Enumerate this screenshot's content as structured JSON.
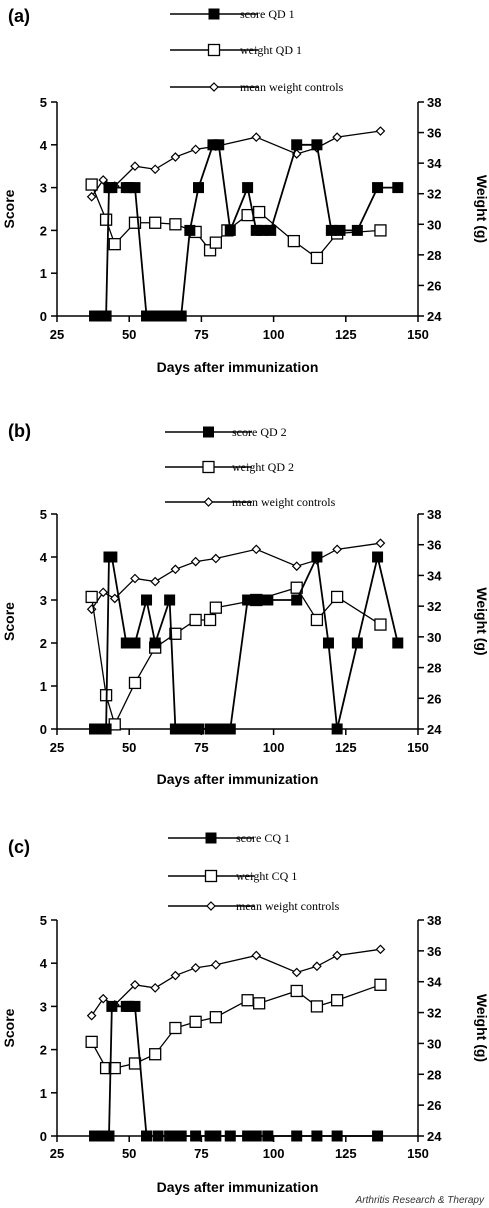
{
  "credit": "Arthritis Research & Therapy",
  "chart_data": [
    {
      "panel": "(a)",
      "type": "line",
      "xlabel": "Days after immunization",
      "ylabel_left": "Score",
      "ylabel_right": "Weight (g)",
      "xlim": [
        25,
        150
      ],
      "xticks": [
        25,
        50,
        75,
        100,
        125,
        150
      ],
      "ylim_left": [
        0,
        5
      ],
      "yticks_left": [
        0,
        1,
        2,
        3,
        4,
        5
      ],
      "ylim_right": [
        24,
        38
      ],
      "yticks_right": [
        24,
        26,
        28,
        30,
        32,
        34,
        36,
        38
      ],
      "series": [
        {
          "name": "score QD 1",
          "axis": "left",
          "marker": "filled-square",
          "x": [
            38,
            40,
            42,
            43,
            44,
            49,
            50,
            52,
            56,
            58,
            60,
            62,
            64,
            66,
            68,
            71,
            74,
            79,
            81,
            85,
            91,
            94,
            96,
            99,
            108,
            115,
            120,
            123,
            129,
            136,
            143
          ],
          "y": [
            0,
            0,
            0,
            3,
            3,
            3,
            3,
            3,
            0,
            0,
            0,
            0,
            0,
            0,
            0,
            2,
            3,
            4,
            4,
            2,
            3,
            2,
            2,
            2,
            4,
            4,
            2,
            2,
            2,
            3,
            3
          ]
        },
        {
          "name": "weight QD 1",
          "axis": "right",
          "marker": "open-square",
          "x": [
            37,
            42,
            45,
            52,
            59,
            66,
            73,
            78,
            80,
            84,
            91,
            95,
            107,
            115,
            122,
            137
          ],
          "y": [
            32.6,
            30.3,
            28.7,
            30.1,
            30.1,
            30.0,
            29.5,
            28.3,
            28.8,
            29.6,
            30.6,
            30.8,
            28.9,
            27.8,
            29.4,
            29.6
          ]
        },
        {
          "name": "mean weight controls",
          "axis": "right",
          "marker": "open-diamond",
          "x": [
            37,
            41,
            45,
            52,
            59,
            66,
            73,
            80,
            94,
            108,
            115,
            122,
            137
          ],
          "y": [
            31.8,
            32.9,
            32.5,
            33.8,
            33.6,
            34.4,
            34.9,
            35.1,
            35.7,
            34.6,
            35.0,
            35.7,
            36.1
          ]
        }
      ]
    },
    {
      "panel": "(b)",
      "type": "line",
      "xlabel": "Days after immunization",
      "ylabel_left": "Score",
      "ylabel_right": "Weight (g)",
      "xlim": [
        25,
        150
      ],
      "xticks": [
        25,
        50,
        75,
        100,
        125,
        150
      ],
      "ylim_left": [
        0,
        5
      ],
      "yticks_left": [
        0,
        1,
        2,
        3,
        4,
        5
      ],
      "ylim_right": [
        24,
        38
      ],
      "yticks_right": [
        24,
        26,
        28,
        30,
        32,
        34,
        36,
        38
      ],
      "series": [
        {
          "name": "score QD 2",
          "axis": "left",
          "marker": "filled-square",
          "x": [
            38,
            40,
            42,
            43,
            44,
            49,
            50,
            52,
            56,
            59,
            64,
            66,
            68,
            70,
            72,
            74,
            78,
            80,
            82,
            85,
            91,
            93,
            95,
            98,
            108,
            115,
            119,
            122,
            129,
            136,
            143
          ],
          "y": [
            0,
            0,
            0,
            4,
            4,
            2,
            2,
            2,
            3,
            2,
            3,
            0,
            0,
            0,
            0,
            0,
            0,
            0,
            0,
            0,
            3,
            3,
            3,
            3,
            3,
            4,
            2,
            0,
            2,
            4,
            2
          ]
        },
        {
          "name": "weight QD 2",
          "axis": "right",
          "marker": "open-square",
          "x": [
            37,
            42,
            45,
            52,
            59,
            66,
            73,
            78,
            80,
            94,
            108,
            115,
            122,
            137
          ],
          "y": [
            32.6,
            26.2,
            24.3,
            27.0,
            29.3,
            30.2,
            31.1,
            31.1,
            31.9,
            32.4,
            33.2,
            31.1,
            32.6,
            30.8
          ]
        },
        {
          "name": "mean weight controls",
          "axis": "right",
          "marker": "open-diamond",
          "x": [
            37,
            41,
            45,
            52,
            59,
            66,
            73,
            80,
            94,
            108,
            115,
            122,
            137
          ],
          "y": [
            31.8,
            32.9,
            32.5,
            33.8,
            33.6,
            34.4,
            34.9,
            35.1,
            35.7,
            34.6,
            35.0,
            35.7,
            36.1
          ]
        }
      ]
    },
    {
      "panel": "(c)",
      "type": "line",
      "xlabel": "Days after immunization",
      "ylabel_left": "Score",
      "ylabel_right": "Weight (g)",
      "xlim": [
        25,
        150
      ],
      "xticks": [
        25,
        50,
        75,
        100,
        125,
        150
      ],
      "ylim_left": [
        0,
        5
      ],
      "yticks_left": [
        0,
        1,
        2,
        3,
        4,
        5
      ],
      "ylim_right": [
        24,
        38
      ],
      "yticks_right": [
        24,
        26,
        28,
        30,
        32,
        34,
        36,
        38
      ],
      "series": [
        {
          "name": "score CQ 1",
          "axis": "left",
          "marker": "filled-square",
          "x": [
            38,
            40,
            42,
            43,
            44,
            49,
            50,
            52,
            56,
            60,
            64,
            66,
            68,
            73,
            78,
            80,
            85,
            91,
            94,
            98,
            108,
            115,
            122,
            136
          ],
          "y": [
            0,
            0,
            0,
            0,
            3,
            3,
            3,
            3,
            0,
            0,
            0,
            0,
            0,
            0,
            0,
            0,
            0,
            0,
            0,
            0,
            0,
            0,
            0,
            0
          ]
        },
        {
          "name": "weight CQ 1",
          "axis": "right",
          "marker": "open-square",
          "x": [
            37,
            42,
            45,
            52,
            59,
            66,
            73,
            80,
            91,
            95,
            108,
            115,
            122,
            137
          ],
          "y": [
            30.1,
            28.4,
            28.4,
            28.7,
            29.3,
            31.0,
            31.4,
            31.7,
            32.8,
            32.6,
            33.4,
            32.4,
            32.8,
            33.8
          ]
        },
        {
          "name": "mean weight controls",
          "axis": "right",
          "marker": "open-diamond",
          "x": [
            37,
            41,
            45,
            52,
            59,
            66,
            73,
            80,
            94,
            108,
            115,
            122,
            137
          ],
          "y": [
            31.8,
            32.9,
            32.5,
            33.8,
            33.6,
            34.4,
            34.9,
            35.1,
            35.7,
            34.6,
            35.0,
            35.7,
            36.1
          ]
        }
      ]
    }
  ]
}
